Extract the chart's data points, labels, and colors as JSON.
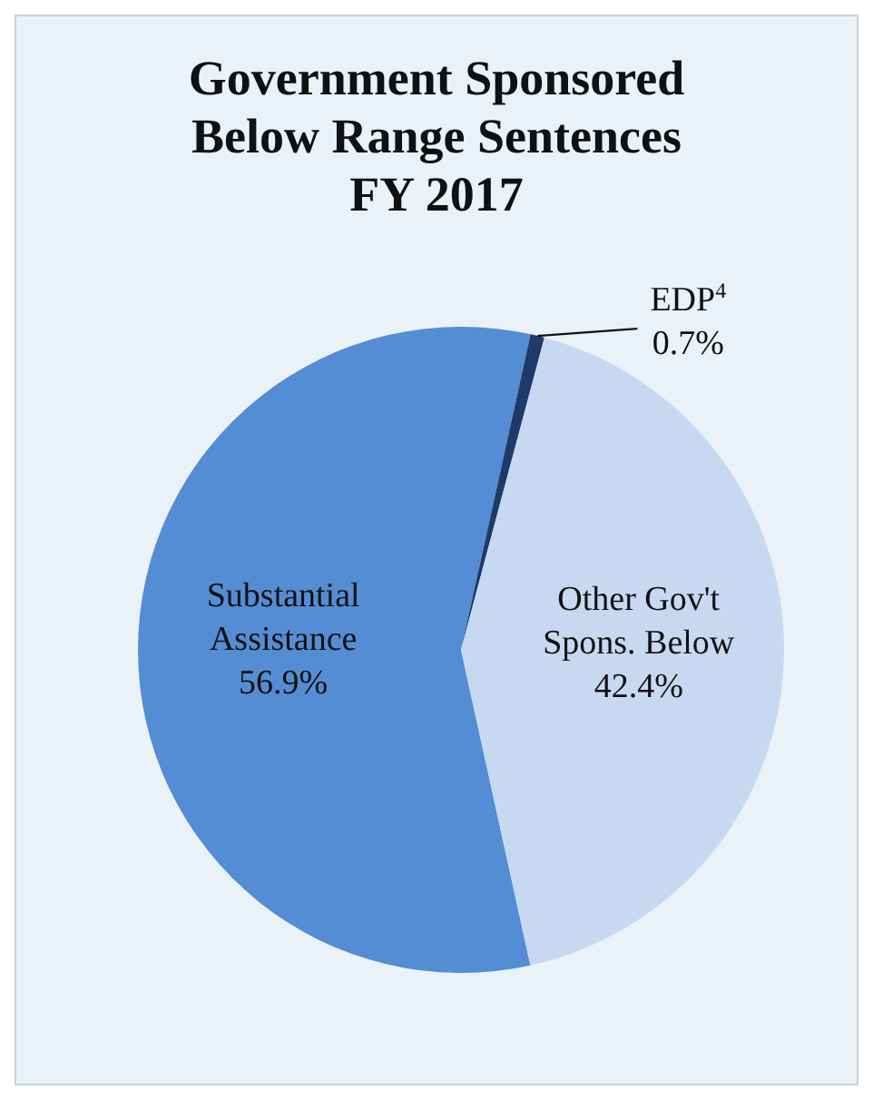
{
  "chart_data": {
    "type": "pie",
    "title": "Government Sponsored Below Range Sentences FY 2017",
    "categories": [
      "Substantial Assistance",
      "EDP$^{4}$",
      "Other Gov't Spons. Below"
    ],
    "values": [
      56.9,
      0.7,
      42.4
    ],
    "colors": [
      "#548dd4",
      "#1f3a68",
      "#c6d9f1"
    ],
    "value_labels": [
      "56.9%",
      "0.7%",
      "42.4%"
    ]
  }
}
